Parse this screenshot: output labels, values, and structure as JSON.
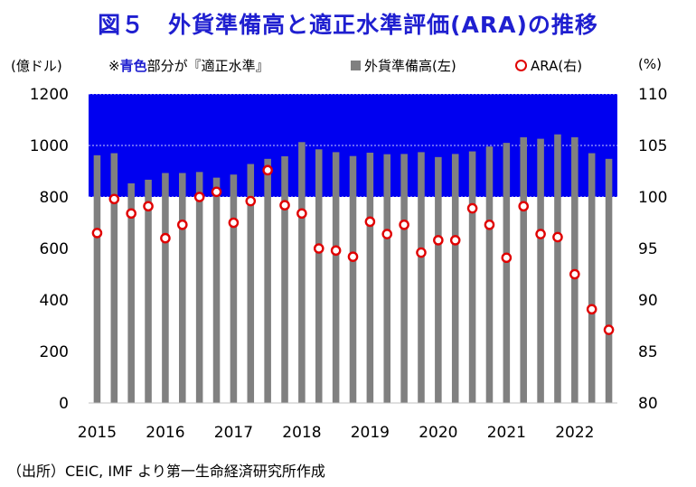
{
  "chart_data": {
    "type": "bar+scatter",
    "title": "図５　外貨準備高と適正水準評価(ARA)の推移",
    "y_left_unit": "(億ドル)",
    "y_right_unit": "(%)",
    "note_prefix": "※",
    "note_highlight": "青色",
    "note_suffix": "部分が『適正水準』",
    "legend": {
      "bar": "外貨準備高(左)",
      "dot": "ARA(右)"
    },
    "ylim_left": [
      0,
      1200
    ],
    "ylim_right": [
      80,
      110
    ],
    "yticks_left": [
      "0",
      "200",
      "400",
      "600",
      "800",
      "1000",
      "1200"
    ],
    "yticks_right": [
      "80",
      "85",
      "90",
      "95",
      "100",
      "105",
      "110"
    ],
    "adequate_range_percent": [
      100,
      110
    ],
    "x_tick_labels": [
      "2015",
      "2016",
      "2017",
      "2018",
      "2019",
      "2020",
      "2021",
      "2022"
    ],
    "periods_per_year": 4,
    "series": [
      {
        "name": "外貨準備高(左)",
        "kind": "bar",
        "color": "#808080",
        "values": [
          962,
          970,
          853,
          867,
          893,
          893,
          897,
          875,
          887,
          928,
          948,
          958,
          1013,
          985,
          974,
          959,
          972,
          966,
          967,
          974,
          955,
          967,
          977,
          996,
          1010,
          1032,
          1026,
          1043,
          1032,
          970,
          948
        ]
      },
      {
        "name": "ARA(右)",
        "kind": "scatter",
        "color": "#e00000",
        "values": [
          96.5,
          99.8,
          98.4,
          99.1,
          96.0,
          97.3,
          100.0,
          100.5,
          97.5,
          99.6,
          102.6,
          99.2,
          98.4,
          95.0,
          94.8,
          94.2,
          97.6,
          96.4,
          97.3,
          94.6,
          95.8,
          95.8,
          98.9,
          97.3,
          94.1,
          99.1,
          96.4,
          96.1,
          92.5,
          89.1,
          87.1
        ]
      }
    ],
    "colors": {
      "adequate_band": "#0000f0",
      "title": "#1f1fd0",
      "dot_edge": "#e00000",
      "bar": "#808080"
    }
  },
  "source_text": "（出所）CEIC, IMF より第一生命経済研究所作成"
}
